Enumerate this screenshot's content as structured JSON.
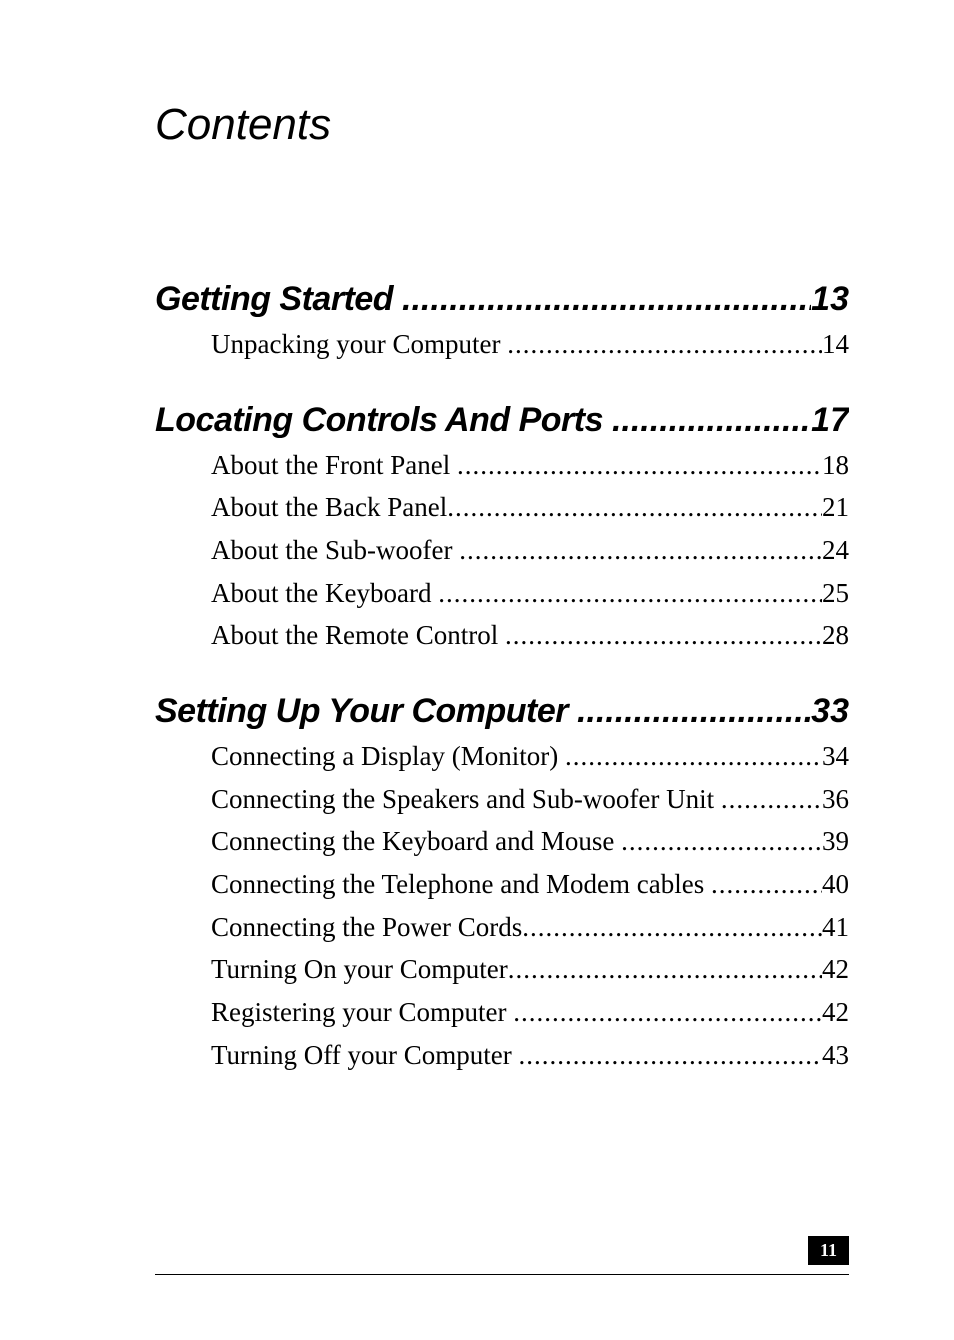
{
  "title": "Contents",
  "dots": "........................................................................................................",
  "sections": [
    {
      "title": "Getting Started",
      "page": "13",
      "entries": [
        {
          "label": "Unpacking your Computer",
          "page": "14"
        }
      ]
    },
    {
      "title": "Locating Controls And Ports",
      "page": "17",
      "entries": [
        {
          "label": "About the Front Panel",
          "page": "18"
        },
        {
          "label": "About the Back Panel",
          "page": "21"
        },
        {
          "label": "About the Sub-woofer",
          "page": "24"
        },
        {
          "label": "About the Keyboard",
          "page": "25"
        },
        {
          "label": "About the Remote Control",
          "page": "28"
        }
      ]
    },
    {
      "title": "Setting Up Your Computer",
      "page": "33",
      "entries": [
        {
          "label": "Connecting a Display (Monitor)",
          "page": "34"
        },
        {
          "label": "Connecting the Speakers and Sub-woofer Unit",
          "page": "36"
        },
        {
          "label": "Connecting the Keyboard and Mouse",
          "page": "39"
        },
        {
          "label": "Connecting the Telephone and Modem cables",
          "page": "40"
        },
        {
          "label": "Connecting the Power Cords",
          "page": "41"
        },
        {
          "label": "Turning On your Computer",
          "page": "42"
        },
        {
          "label": "Registering your Computer",
          "page": "42"
        },
        {
          "label": "Turning Off your Computer",
          "page": "43"
        }
      ]
    }
  ],
  "pageNumber": "11"
}
